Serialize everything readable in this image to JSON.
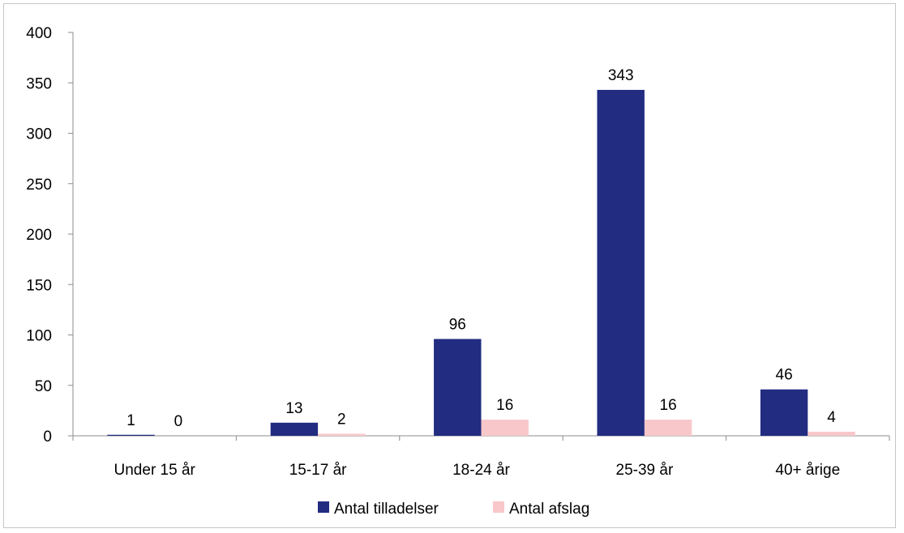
{
  "chart_data": {
    "type": "bar",
    "categories": [
      "Under 15 år",
      "15-17 år",
      "18-24 år",
      "25-39 år",
      "40+ årige"
    ],
    "series": [
      {
        "name": "Antal tilladelser",
        "values": [
          1,
          13,
          96,
          343,
          46
        ],
        "color": "#222c80"
      },
      {
        "name": "Antal afslag",
        "values": [
          0,
          2,
          16,
          16,
          4
        ],
        "color": "#f8c7ca"
      }
    ],
    "y_ticks": [
      "0",
      "50",
      "100",
      "150",
      "200",
      "250",
      "300",
      "350",
      "400"
    ],
    "ylim": [
      0,
      400
    ],
    "grid": false,
    "legend_position": "bottom"
  }
}
